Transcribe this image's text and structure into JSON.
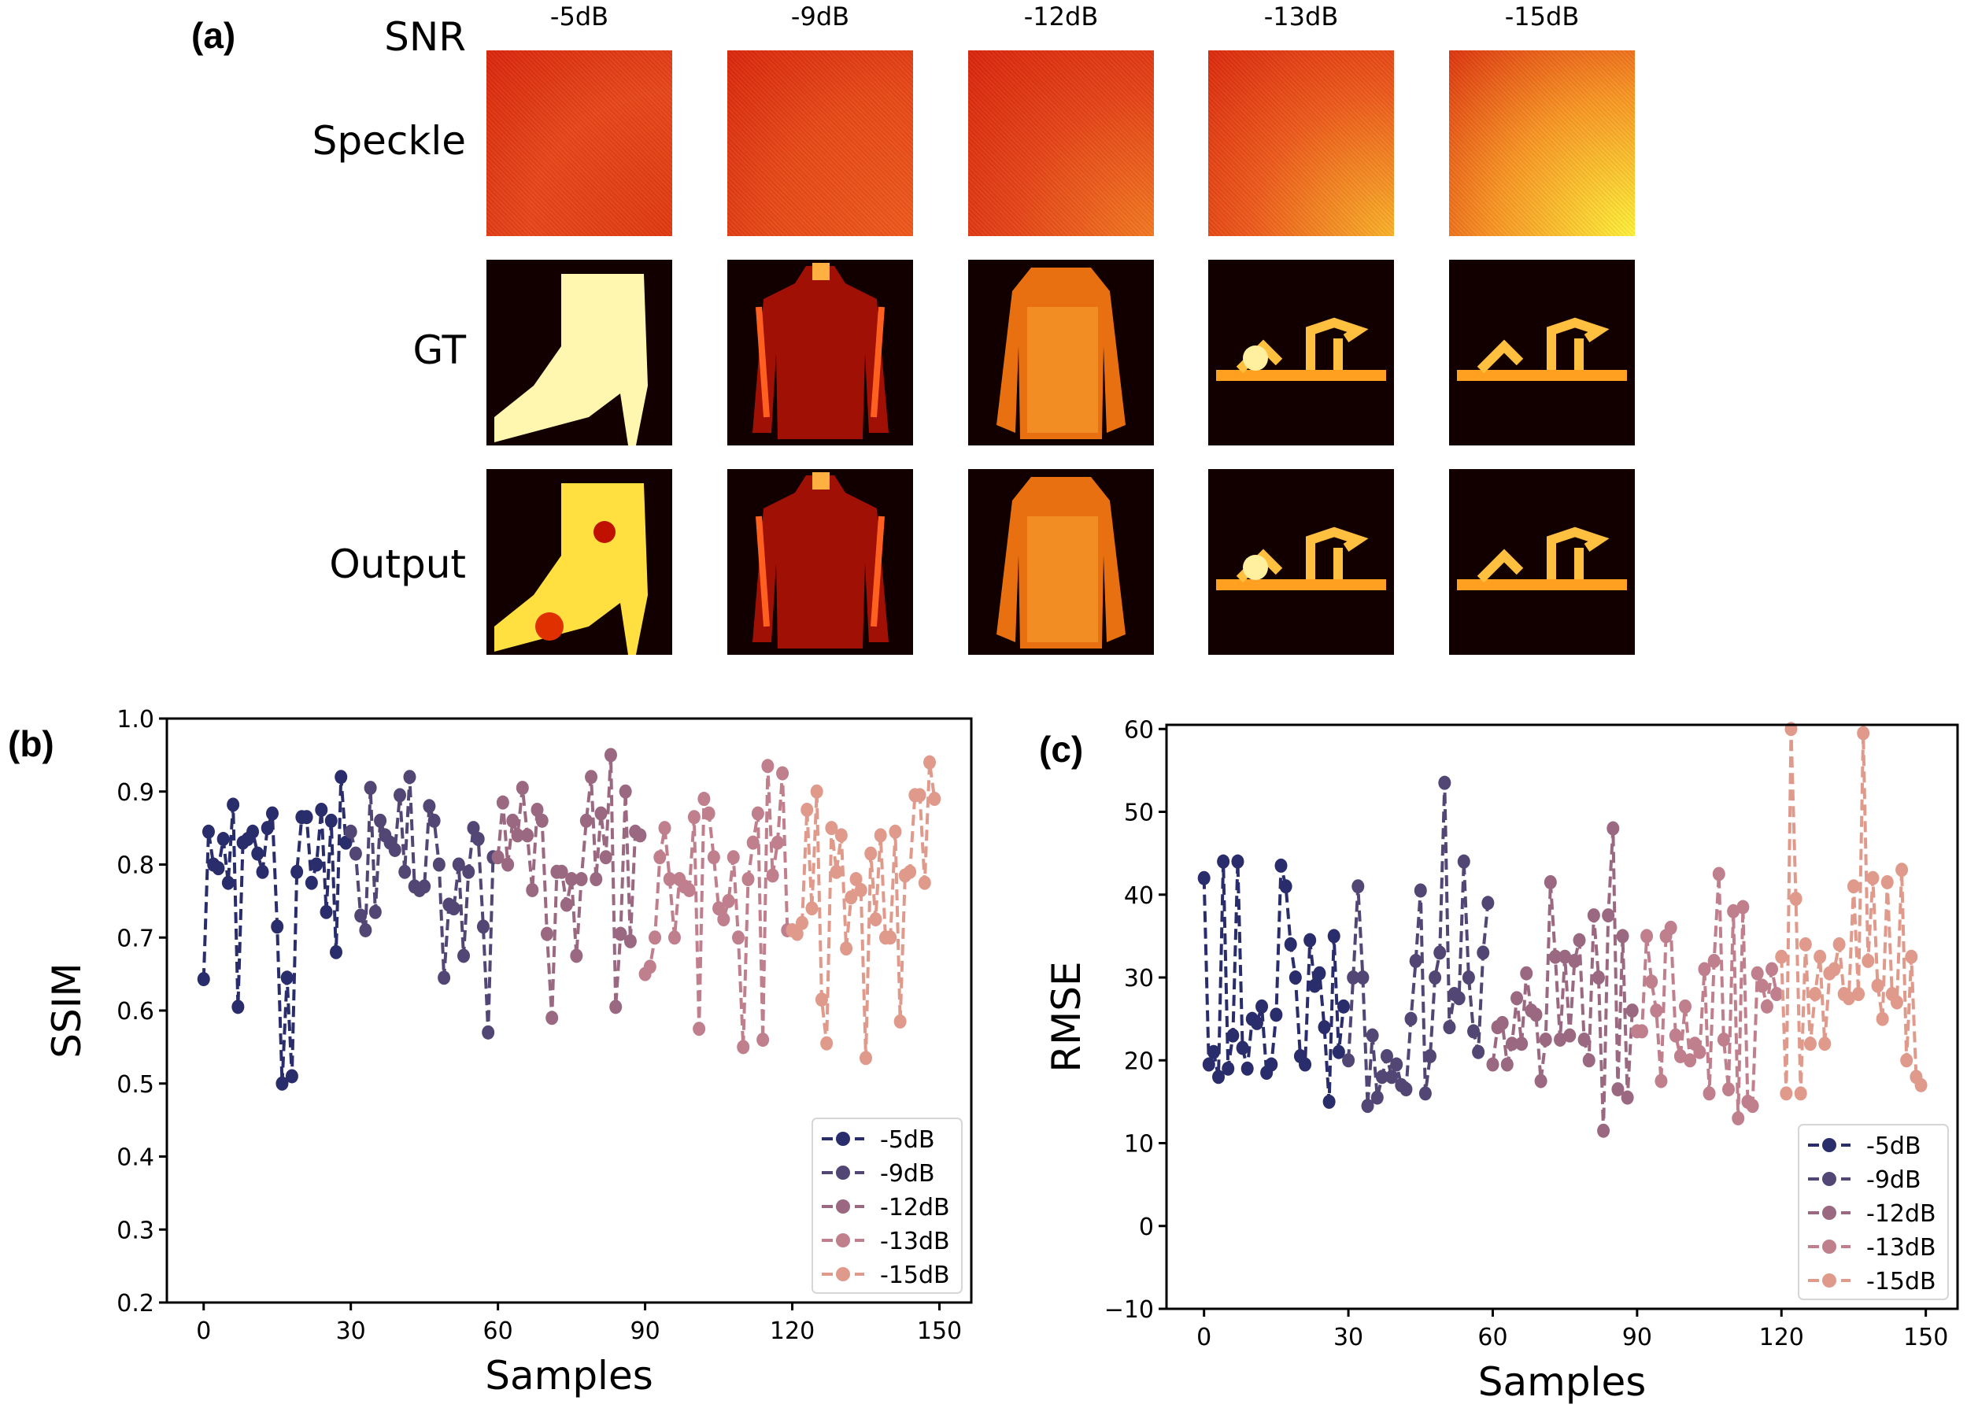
{
  "panel_a": {
    "label": "(a)",
    "row_labels": {
      "snr": "SNR",
      "speckle": "Speckle",
      "gt": "GT",
      "output": "Output"
    },
    "snr_values": [
      "-5dB",
      "-9dB",
      "-12dB",
      "-13dB",
      "-15dB"
    ],
    "objects": [
      "ankle-boot",
      "shirt",
      "pullover",
      "sandal",
      "sandal"
    ]
  },
  "chart_data": [
    {
      "panel_label": "(b)",
      "type": "line",
      "xlabel": "Samples",
      "ylabel": "SSIM",
      "xlim": [
        -7.5,
        156.5
      ],
      "ylim": [
        0.2,
        1.0
      ],
      "xticks": [
        "0",
        "30",
        "60",
        "90",
        "120",
        "150"
      ],
      "yticks": [
        "0.2",
        "0.3",
        "0.4",
        "0.5",
        "0.6",
        "0.7",
        "0.8",
        "0.9",
        "1.0"
      ],
      "legend_position": "lower-right",
      "series": [
        {
          "name": "-5dB",
          "color": "#2a2d6b",
          "x_start": 0,
          "values": [
            0.643,
            0.845,
            0.8,
            0.795,
            0.835,
            0.775,
            0.882,
            0.605,
            0.83,
            0.835,
            0.845,
            0.815,
            0.79,
            0.85,
            0.87,
            0.715,
            0.5,
            0.645,
            0.51,
            0.79,
            0.865,
            0.865,
            0.775,
            0.8,
            0.875,
            0.735,
            0.86,
            0.68,
            0.92,
            0.83
          ]
        },
        {
          "name": "-9dB",
          "color": "#524675",
          "x_start": 30,
          "values": [
            0.845,
            0.815,
            0.73,
            0.71,
            0.905,
            0.735,
            0.86,
            0.84,
            0.83,
            0.82,
            0.895,
            0.79,
            0.92,
            0.77,
            0.765,
            0.77,
            0.88,
            0.86,
            0.8,
            0.645,
            0.745,
            0.74,
            0.8,
            0.675,
            0.79,
            0.85,
            0.835,
            0.715,
            0.57,
            0.81
          ]
        },
        {
          "name": "-12dB",
          "color": "#9a6880",
          "x_start": 60,
          "values": [
            0.81,
            0.885,
            0.8,
            0.86,
            0.84,
            0.905,
            0.84,
            0.765,
            0.875,
            0.86,
            0.705,
            0.59,
            0.79,
            0.79,
            0.745,
            0.78,
            0.675,
            0.78,
            0.86,
            0.92,
            0.78,
            0.87,
            0.81,
            0.95,
            0.605,
            0.705,
            0.9,
            0.695,
            0.845,
            0.84
          ]
        },
        {
          "name": "-13dB",
          "color": "#c07f8c",
          "x_start": 90,
          "values": [
            0.65,
            0.66,
            0.7,
            0.81,
            0.85,
            0.78,
            0.7,
            0.78,
            0.77,
            0.765,
            0.865,
            0.575,
            0.89,
            0.87,
            0.81,
            0.74,
            0.725,
            0.75,
            0.81,
            0.7,
            0.55,
            0.78,
            0.83,
            0.87,
            0.56,
            0.935,
            0.785,
            0.83,
            0.925,
            0.71
          ]
        },
        {
          "name": "-15dB",
          "color": "#e09a8c",
          "x_start": 120,
          "values": [
            0.71,
            0.705,
            0.72,
            0.875,
            0.74,
            0.9,
            0.615,
            0.555,
            0.85,
            0.79,
            0.84,
            0.685,
            0.755,
            0.78,
            0.765,
            0.535,
            0.815,
            0.725,
            0.84,
            0.7,
            0.7,
            0.845,
            0.585,
            0.785,
            0.79,
            0.895,
            0.895,
            0.775,
            0.94,
            0.89
          ]
        }
      ]
    },
    {
      "panel_label": "(c)",
      "type": "line",
      "xlabel": "Samples",
      "ylabel": "RMSE",
      "xlim": [
        -7.8,
        156.6
      ],
      "ylim": [
        -10,
        60.5
      ],
      "xticks": [
        "0",
        "30",
        "60",
        "90",
        "120",
        "150"
      ],
      "yticks": [
        "−10",
        "0",
        "10",
        "20",
        "30",
        "40",
        "50",
        "60"
      ],
      "legend_position": "lower-right",
      "series": [
        {
          "name": "-5dB",
          "color": "#2a2d6b",
          "x_start": 0,
          "values": [
            42,
            19.5,
            21,
            18,
            44,
            19,
            23,
            44,
            21.5,
            19,
            25,
            24.5,
            26.5,
            18.5,
            19.5,
            25.5,
            43.5,
            41,
            34,
            30,
            20.5,
            19.5,
            34.5,
            29,
            30.5,
            24,
            15,
            35,
            21,
            26.5
          ]
        },
        {
          "name": "-9dB",
          "color": "#524675",
          "x_start": 30,
          "values": [
            20,
            30,
            41,
            30,
            14.5,
            23,
            15.5,
            18,
            20.5,
            18,
            19.5,
            17,
            16.5,
            25,
            32,
            40.5,
            16,
            20.5,
            30,
            33,
            53.5,
            24,
            28,
            27.5,
            44,
            30,
            23.5,
            21,
            33,
            39
          ]
        },
        {
          "name": "-12dB",
          "color": "#9a6880",
          "x_start": 60,
          "values": [
            19.5,
            24,
            24.5,
            19.5,
            22,
            27.5,
            22,
            30.5,
            26,
            25.5,
            17.5,
            22.5,
            41.5,
            32.5,
            22.5,
            32.5,
            23,
            32,
            34.5,
            22.5,
            20,
            37.5,
            30,
            11.5,
            37.5,
            48,
            16.5,
            35,
            15.5,
            26
          ]
        },
        {
          "name": "-13dB",
          "color": "#c07f8c",
          "x_start": 90,
          "values": [
            23.5,
            23.5,
            35,
            29.5,
            26,
            17.5,
            35,
            36,
            23,
            20.5,
            26.5,
            20,
            22,
            21,
            31,
            16,
            32,
            42.5,
            22.5,
            16.5,
            38,
            13,
            38.5,
            15,
            14.5,
            30.5,
            29,
            26.5,
            31,
            28
          ]
        },
        {
          "name": "-15dB",
          "color": "#e09a8c",
          "x_start": 120,
          "values": [
            32.5,
            16,
            60,
            39.5,
            16,
            34,
            22,
            28,
            32.5,
            22,
            30.5,
            31,
            34,
            28,
            27.5,
            41,
            28,
            59.5,
            32,
            42,
            29,
            25,
            41.5,
            28,
            27,
            43,
            20,
            32.5,
            18,
            17
          ]
        }
      ]
    }
  ]
}
